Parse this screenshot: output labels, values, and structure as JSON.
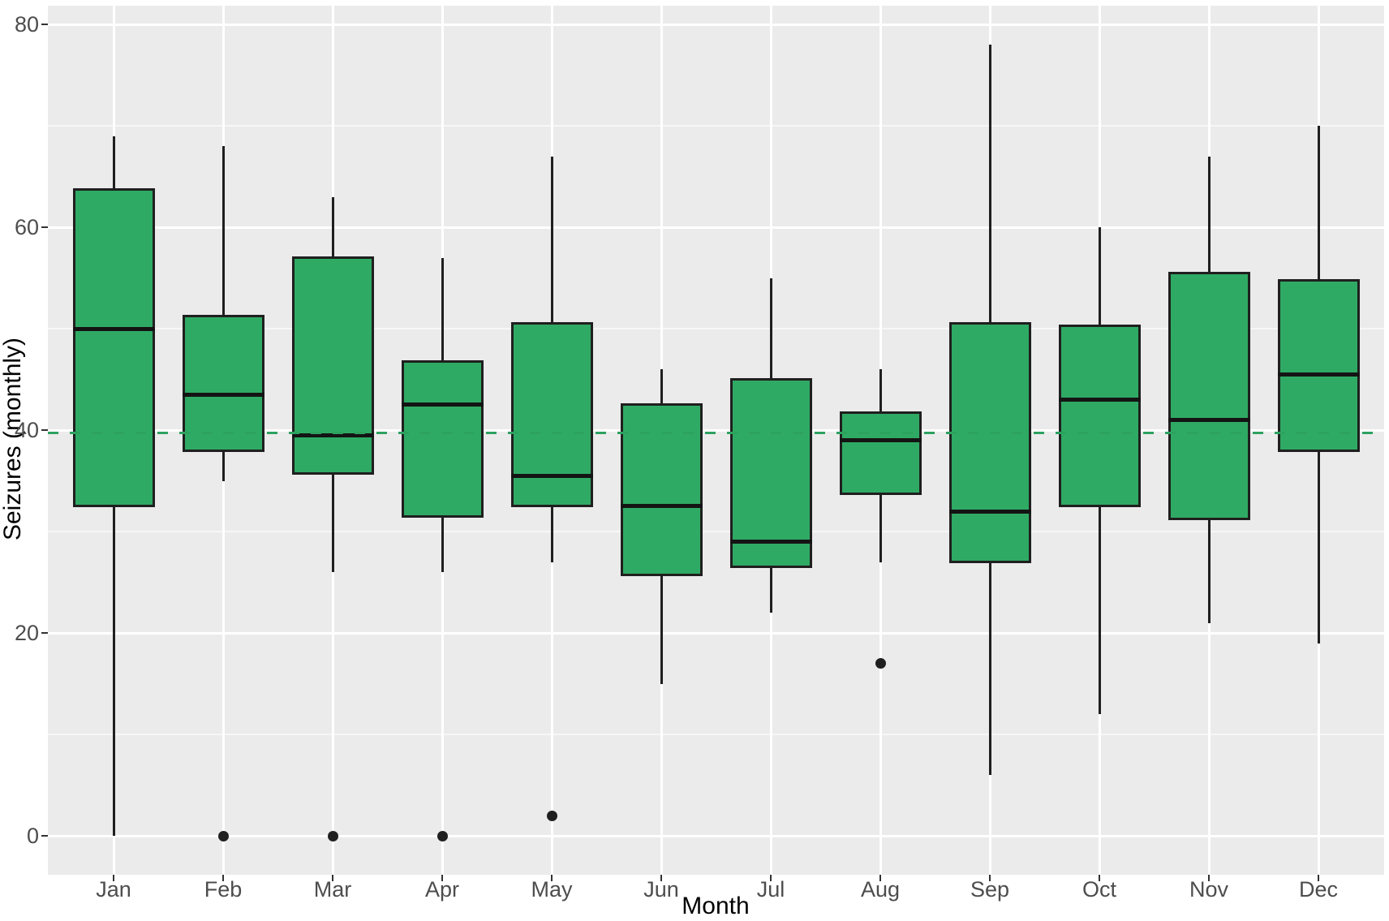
{
  "chart_data": {
    "type": "boxplot",
    "title": "",
    "xlabel": "Month",
    "ylabel": "Seizures (monthly)",
    "categories": [
      "Jan",
      "Feb",
      "Mar",
      "Apr",
      "May",
      "Jun",
      "Jul",
      "Aug",
      "Sep",
      "Oct",
      "Nov",
      "Dec"
    ],
    "y_ticks": [
      0,
      20,
      40,
      60,
      80
    ],
    "y_minor_gridlines": [
      10,
      30,
      50,
      70
    ],
    "ylim": [
      -3.9,
      81.9
    ],
    "grid": true,
    "legend": null,
    "reference_line": {
      "value": 39.7,
      "style": "dashed",
      "color": "#2da25f"
    },
    "series": [
      {
        "month": "Jan",
        "lower_whisker": 0,
        "q1": 32.5,
        "median": 50,
        "q3": 63.75,
        "upper_whisker": 69,
        "outliers": []
      },
      {
        "month": "Feb",
        "lower_whisker": 35,
        "q1": 38,
        "median": 43.5,
        "q3": 51.25,
        "upper_whisker": 68,
        "outliers": [
          0
        ]
      },
      {
        "month": "Mar",
        "lower_whisker": 26,
        "q1": 35.75,
        "median": 39.5,
        "q3": 57,
        "upper_whisker": 63,
        "outliers": [
          0
        ]
      },
      {
        "month": "Apr",
        "lower_whisker": 26,
        "q1": 31.5,
        "median": 42.5,
        "q3": 46.75,
        "upper_whisker": 57,
        "outliers": [
          0
        ]
      },
      {
        "month": "May",
        "lower_whisker": 27,
        "q1": 32.5,
        "median": 35.5,
        "q3": 50.5,
        "upper_whisker": 67,
        "outliers": [
          2
        ]
      },
      {
        "month": "Jun",
        "lower_whisker": 15,
        "q1": 25.75,
        "median": 32.5,
        "q3": 42.5,
        "upper_whisker": 46,
        "outliers": []
      },
      {
        "month": "Jul",
        "lower_whisker": 22,
        "q1": 26.5,
        "median": 29,
        "q3": 45,
        "upper_whisker": 55,
        "outliers": []
      },
      {
        "month": "Aug",
        "lower_whisker": 27,
        "q1": 33.75,
        "median": 39,
        "q3": 41.75,
        "upper_whisker": 46,
        "outliers": [
          17
        ]
      },
      {
        "month": "Sep",
        "lower_whisker": 6,
        "q1": 27,
        "median": 32,
        "q3": 50.5,
        "upper_whisker": 78,
        "outliers": []
      },
      {
        "month": "Oct",
        "lower_whisker": 12,
        "q1": 32.5,
        "median": 43,
        "q3": 50.25,
        "upper_whisker": 60,
        "outliers": []
      },
      {
        "month": "Nov",
        "lower_whisker": 21,
        "q1": 31.25,
        "median": 41,
        "q3": 55.5,
        "upper_whisker": 67,
        "outliers": []
      },
      {
        "month": "Dec",
        "lower_whisker": 19,
        "q1": 38,
        "median": 45.5,
        "q3": 54.75,
        "upper_whisker": 70,
        "outliers": []
      }
    ],
    "colors": {
      "box_fill": "#2faa64",
      "box_stroke": "#1f1f1f",
      "median": "#141414",
      "reference_dash": "#2da25f",
      "panel_bg": "#ebebeb",
      "gridline": "#ffffff",
      "tick_label": "#4d4d4d",
      "axis_title": "#000000",
      "outlier": "#1f1f1f"
    }
  }
}
